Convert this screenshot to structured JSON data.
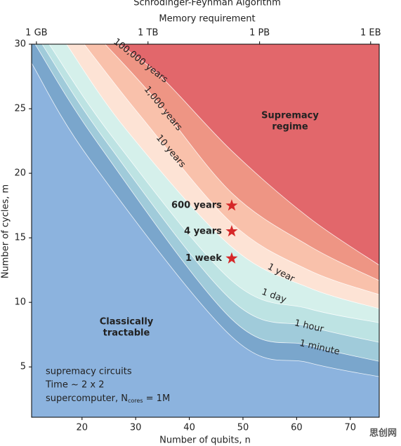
{
  "chart_data": {
    "type": "contour",
    "title": "Schrödinger-Feynman Algorithm",
    "x2label": "Memory requirement",
    "xlabel": "Number of qubits, n",
    "ylabel": "Number of cycles, m",
    "xlim": [
      10.6,
      75.4
    ],
    "ylim": [
      1.1,
      30
    ],
    "xticks": [
      20,
      30,
      40,
      50,
      60,
      70
    ],
    "yticks": [
      5,
      10,
      15,
      20,
      25,
      30
    ],
    "x2ticks": [
      {
        "value": 11.5,
        "label": "1 GB"
      },
      {
        "value": 32.3,
        "label": "1 TB"
      },
      {
        "value": 53.1,
        "label": "1 PB"
      },
      {
        "value": 73.8,
        "label": "1 EB"
      }
    ],
    "base_color": "#8cb3de",
    "contours": [
      {
        "color": "#7aa6cc",
        "x": [
          10.6,
          21.71,
          47.9,
          62.24,
          75.4
        ],
        "y": [
          28.53,
          20.92,
          7.34,
          5.33,
          4.24
        ]
      },
      {
        "name": "1 minute",
        "color": "#a0cbda",
        "x": [
          11.25,
          23.02,
          47.9,
          62.24,
          75.4
        ],
        "y": [
          30,
          22.28,
          8.7,
          6.68,
          5.43
        ]
      },
      {
        "name": "1 hour",
        "color": "#bde3e3",
        "x": [
          12.56,
          24.33,
          47.9,
          62.24,
          75.4
        ],
        "y": [
          30,
          22.55,
          10.16,
          8.15,
          6.9
        ]
      },
      {
        "name": "1 day",
        "color": "#d5f0eb",
        "x": [
          13.87,
          25.63,
          47.9,
          62.24,
          75.4
        ],
        "y": [
          30,
          22.83,
          11.68,
          9.51,
          8.42
        ]
      },
      {
        "name": "1 year",
        "color": "#fde3d5",
        "x": [
          17.1,
          28.25,
          47.9,
          62.24,
          75.4
        ],
        "y": [
          30,
          23.37,
          14.29,
          11.14,
          9.51
        ]
      },
      {
        "name": "10 years",
        "color": "#f9c1ab",
        "x": [
          20.4,
          30.86,
          47.9,
          62.24,
          75.4
        ],
        "y": [
          30,
          24.46,
          16.14,
          12.5,
          10.6
        ]
      },
      {
        "name": "1,000 years",
        "color": "#ee9584",
        "x": [
          24.3,
          33.48,
          47.9,
          62.24,
          75.4
        ],
        "y": [
          30,
          25.82,
          18.48,
          14.4,
          11.68
        ]
      },
      {
        "name": "100,000 years",
        "color": "#e2676b",
        "x": [
          26.9,
          34.78,
          47.9,
          62.24,
          75.4
        ],
        "y": [
          30,
          27.45,
          21.74,
          16.58,
          12.88
        ]
      }
    ],
    "points": {
      "color": "#d62728",
      "x": [
        47.9,
        47.9,
        47.9
      ],
      "y": [
        17.5,
        15.5,
        13.4
      ],
      "labels": [
        "600 years",
        "4 years",
        "1 week"
      ]
    },
    "supremacy_label": [
      "Supremacy",
      "regime"
    ],
    "tractable_label": [
      "Classically",
      "tractable"
    ],
    "note": {
      "circuits": "supremacy circuits",
      "time": "Time ~ 2 x 2",
      "machine": "supercomputer, N",
      "machine_sub": "cores",
      "machine_rest": " = 1M"
    },
    "watermark": "思创网"
  }
}
